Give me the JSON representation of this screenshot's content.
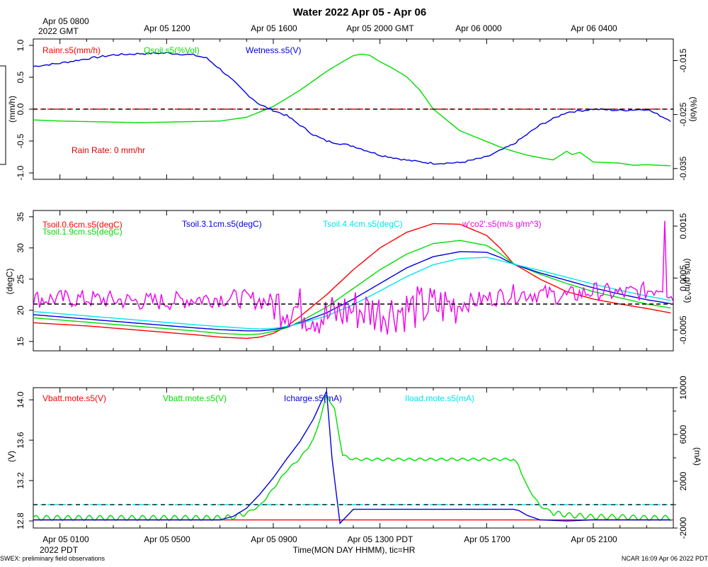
{
  "chart_data": {
    "type": "line",
    "title": "Water 2022 Apr 05 - Apr 06",
    "top_time_labels": [
      "Apr 05 0800",
      "Apr 05 1200",
      "Apr 05 1600",
      "Apr 05 2000 GMT",
      "Apr 06 0000",
      "Apr 06 0400"
    ],
    "top_sublabel": "2022 GMT",
    "bottom_time_labels": [
      "Apr 05 0100",
      "Apr 05 0500",
      "Apr 05 0900",
      "Apr 05 1300 PDT",
      "Apr 05 1700",
      "Apr 05 2100"
    ],
    "bottom_sublabel": "2022 PDT",
    "xlabel": "Time(MON DAY HHMM), tic=HR",
    "footer_left": "SWEX: preliminary field observations",
    "footer_right": "NCAR 16:09 Apr 06 2022 PDT",
    "panels": [
      {
        "id": "water",
        "ylabel_left": "(mm/h)",
        "ylabel_right": "(%Vol)",
        "ylim_left": [
          -1.1,
          1.1
        ],
        "ylim_right": [
          -0.037,
          -0.011
        ],
        "yticks_left": [
          "1.0",
          "0.5",
          "0.0",
          "-0.5",
          "-1.0"
        ],
        "yticks_right": [
          "-0.015",
          "-0.025",
          "-0.035"
        ],
        "annotation": "Rain Rate: 0 mm/hr",
        "series": [
          {
            "name": "Rainr.s5(mm/h)",
            "color": "#ff0000",
            "axis": "left",
            "dashed": true,
            "x": [
              0,
              24
            ],
            "y": [
              0,
              0
            ]
          },
          {
            "name": "Qsoil.s5(%Vol)",
            "color": "#00dd00",
            "axis": "right",
            "x": [
              0,
              1,
              2,
              3,
              4,
              5,
              6,
              7,
              8,
              9,
              10,
              11,
              11.5,
              12,
              12.3,
              12.6,
              13,
              13.5,
              14,
              14.5,
              15,
              16,
              17,
              17.5,
              18,
              18.5,
              19,
              19.5,
              20,
              20.2,
              20.5,
              21,
              22,
              22.5,
              23,
              24
            ],
            "y": [
              -0.026,
              -0.0262,
              -0.0263,
              -0.0264,
              -0.0265,
              -0.0264,
              -0.0263,
              -0.0262,
              -0.0255,
              -0.0235,
              -0.0205,
              -0.017,
              -0.0155,
              -0.0141,
              -0.0138,
              -0.014,
              -0.0152,
              -0.0165,
              -0.018,
              -0.0205,
              -0.024,
              -0.028,
              -0.03,
              -0.031,
              -0.0318,
              -0.0325,
              -0.033,
              -0.0334,
              -0.0318,
              -0.0324,
              -0.032,
              -0.0338,
              -0.034,
              -0.0344,
              -0.0343,
              -0.0345
            ]
          },
          {
            "name": "Wetness.s5(V)",
            "color": "#0000dd",
            "axis": "left",
            "x": [
              0,
              1,
              2,
              3,
              4,
              5,
              6,
              6.5,
              7,
              7.5,
              8,
              8.5,
              9,
              9.5,
              10,
              10.5,
              11,
              12,
              13,
              14,
              15,
              16,
              17,
              18,
              18.5,
              19,
              19.5,
              20,
              21,
              22,
              23,
              23.5,
              24
            ],
            "y": [
              0.67,
              0.72,
              0.79,
              0.85,
              0.87,
              0.88,
              0.85,
              0.8,
              0.63,
              0.44,
              0.24,
              0.07,
              -0.02,
              -0.1,
              -0.25,
              -0.4,
              -0.5,
              -0.58,
              -0.72,
              -0.8,
              -0.85,
              -0.84,
              -0.75,
              -0.55,
              -0.4,
              -0.25,
              -0.15,
              -0.05,
              0.0,
              -0.02,
              0.0,
              -0.1,
              -0.2
            ]
          }
        ]
      },
      {
        "id": "tsoil",
        "ylabel_left": "(degC)",
        "ylabel_right": "(m/s g/m^3)",
        "ylim_left": [
          13.5,
          36
        ],
        "ylim_right": [
          -0.0009,
          0.0018
        ],
        "yticks_left": [
          "35",
          "30",
          "25",
          "20",
          "15"
        ],
        "yticks_right": [
          "0.0015",
          "0.0005",
          "-0.0005"
        ],
        "series": [
          {
            "name": "Tsoil.0.6cm.s5(degC)",
            "color": "#ff0000",
            "axis": "left",
            "x": [
              0,
              2,
              4,
              6,
              7,
              8,
              8.5,
              9,
              9.5,
              10,
              11,
              12,
              13,
              14,
              15,
              16,
              17,
              17.5,
              18,
              19,
              20,
              21,
              22,
              23,
              24
            ],
            "y": [
              18,
              17.5,
              16.8,
              16.1,
              15.7,
              15.5,
              15.7,
              16.3,
              17.4,
              19,
              22.5,
              26.5,
              30,
              32.5,
              33.9,
              33.8,
              32,
              30,
              27.5,
              25,
              23,
              21.8,
              21,
              20.3,
              19.5
            ]
          },
          {
            "name": "Tsoil.1.9cm.s5(degC)",
            "color": "#00dd00",
            "axis": "left",
            "x": [
              0,
              2,
              4,
              6,
              7,
              8,
              8.5,
              9,
              9.5,
              10,
              11,
              12,
              13,
              14,
              15,
              16,
              17,
              17.5,
              18,
              19,
              20,
              21,
              22,
              23,
              24
            ],
            "y": [
              18.8,
              18.1,
              17.4,
              16.7,
              16.3,
              16.1,
              16.2,
              16.6,
              17.2,
              18.2,
              20.5,
              23.5,
              26.5,
              29,
              30.7,
              31.2,
              30.4,
              29.1,
              27.5,
              25.8,
              24.3,
              23,
              22,
              21,
              20.3
            ]
          },
          {
            "name": "Tsoil.3.1cm.s5(degC)",
            "color": "#0000dd",
            "axis": "left",
            "x": [
              0,
              2,
              4,
              6,
              7,
              8,
              8.5,
              9,
              9.5,
              10,
              11,
              12,
              13,
              14,
              15,
              16,
              17,
              17.5,
              18,
              19,
              20,
              21,
              22,
              23,
              24
            ],
            "y": [
              19.3,
              18.6,
              17.9,
              17.2,
              16.9,
              16.7,
              16.7,
              16.9,
              17.3,
              18,
              19.6,
              21.8,
              24.3,
              26.8,
              28.6,
              29.4,
              29.3,
              28.5,
              27.4,
              26,
              24.8,
              23.6,
              22.6,
              21.7,
              21
            ]
          },
          {
            "name": "Tsoil.4.4cm.s5(degC)",
            "color": "#00e5ee",
            "axis": "left",
            "x": [
              0,
              2,
              4,
              6,
              7,
              8,
              8.5,
              9,
              9.5,
              10,
              11,
              12,
              13,
              14,
              15,
              16,
              17,
              17.5,
              18,
              19,
              20,
              21,
              22,
              23,
              24
            ],
            "y": [
              19.8,
              19.1,
              18.4,
              17.7,
              17.4,
              17.1,
              17,
              17.1,
              17.4,
              17.9,
              19.1,
              20.9,
              23.1,
              25.4,
              27.3,
              28.3,
              28.5,
              28,
              27.4,
              26.4,
              25.3,
              24.2,
              23.2,
              22.3,
              21.5
            ]
          },
          {
            "name": "w'co2'.s5(m/s g/m^3)",
            "color": "#ee00ee",
            "axis": "right",
            "noisy": true,
            "x": [
              0,
              1,
              2,
              3,
              4,
              5,
              6,
              7,
              8,
              9,
              10,
              11,
              12,
              13,
              14,
              15,
              16,
              17,
              18,
              19,
              20,
              21,
              22,
              23,
              23.6,
              24
            ],
            "y": [
              0.0001,
              0.0001,
              0.0001,
              8e-05,
              5e-05,
              5e-05,
              0.0001,
              0.00012,
              0.0001,
              3e-05,
              -0.0001,
              -0.00025,
              -0.0001,
              -0.00015,
              -0.0001,
              -5e-05,
              0,
              0.0001,
              0.0002,
              0.0002,
              0.00015,
              0.00025,
              0.0002,
              0.00025,
              0.00035,
              0.0001
            ],
            "spike": [
              23.7,
              0.0016
            ]
          },
          {
            "name": "zero",
            "color": "#000000",
            "axis": "right",
            "dashed": true,
            "x": [
              0,
              24
            ],
            "y": [
              0,
              0
            ]
          }
        ]
      },
      {
        "id": "power",
        "ylabel_left": "(V)",
        "ylabel_right": "(mA)",
        "ylim_left": [
          12.73,
          14.12
        ],
        "ylim_right": [
          -2000,
          10000
        ],
        "yticks_left": [
          "14.0",
          "13.6",
          "13.2",
          "12.8"
        ],
        "yticks_right": [
          "10000",
          "6000",
          "2000",
          "-2000"
        ],
        "yticks_right_minor": [
          "8000",
          "4000",
          "0"
        ],
        "series": [
          {
            "name": "Vbatt.mote.s5(V)",
            "color": "#ff0000",
            "axis": "left",
            "hidden_under": true,
            "x": [
              0,
              24
            ],
            "y": [
              12.81,
              12.81
            ]
          },
          {
            "name": "Vbatt.mote.s5(V)",
            "color": "#00dd00",
            "axis": "left",
            "wavy": true,
            "x": [
              0,
              7,
              7.5,
              8,
              8.5,
              9,
              9.5,
              10,
              10.5,
              10.8,
              11,
              11.3,
              11.6,
              12,
              18,
              18.2,
              18.5,
              19,
              19.5,
              20,
              21,
              22,
              23,
              24
            ],
            "y": [
              12.83,
              12.83,
              12.84,
              12.88,
              12.95,
              13.12,
              13.3,
              13.42,
              13.6,
              13.85,
              14.05,
              13.9,
              13.45,
              13.41,
              13.41,
              13.35,
              13.15,
              12.95,
              12.88,
              12.86,
              12.84,
              12.84,
              12.83,
              12.83
            ]
          },
          {
            "name": "Icharge.s5(mA)",
            "color": "#0000dd",
            "axis": "right",
            "x": [
              0,
              6,
              7,
              7.5,
              8,
              8.5,
              9,
              9.5,
              10,
              10.5,
              10.8,
              11,
              11.2,
              11.5,
              12,
              18,
              18.2,
              18.5,
              19,
              20,
              21,
              22,
              23,
              24
            ],
            "y": [
              -1300,
              -1300,
              -1300,
              -1000,
              -300,
              900,
              2300,
              3900,
              5400,
              7300,
              8800,
              9700,
              4000,
              -1600,
              -400,
              -400,
              -500,
              -900,
              -1300,
              -1400,
              -1300,
              -1300,
              -1300,
              -1300
            ]
          },
          {
            "name": "Iload.mote.s5(mA)",
            "color": "#00e5ee",
            "axis": "right",
            "dashed": true,
            "x": [
              0,
              24
            ],
            "y": [
              0,
              0
            ]
          }
        ]
      }
    ]
  }
}
